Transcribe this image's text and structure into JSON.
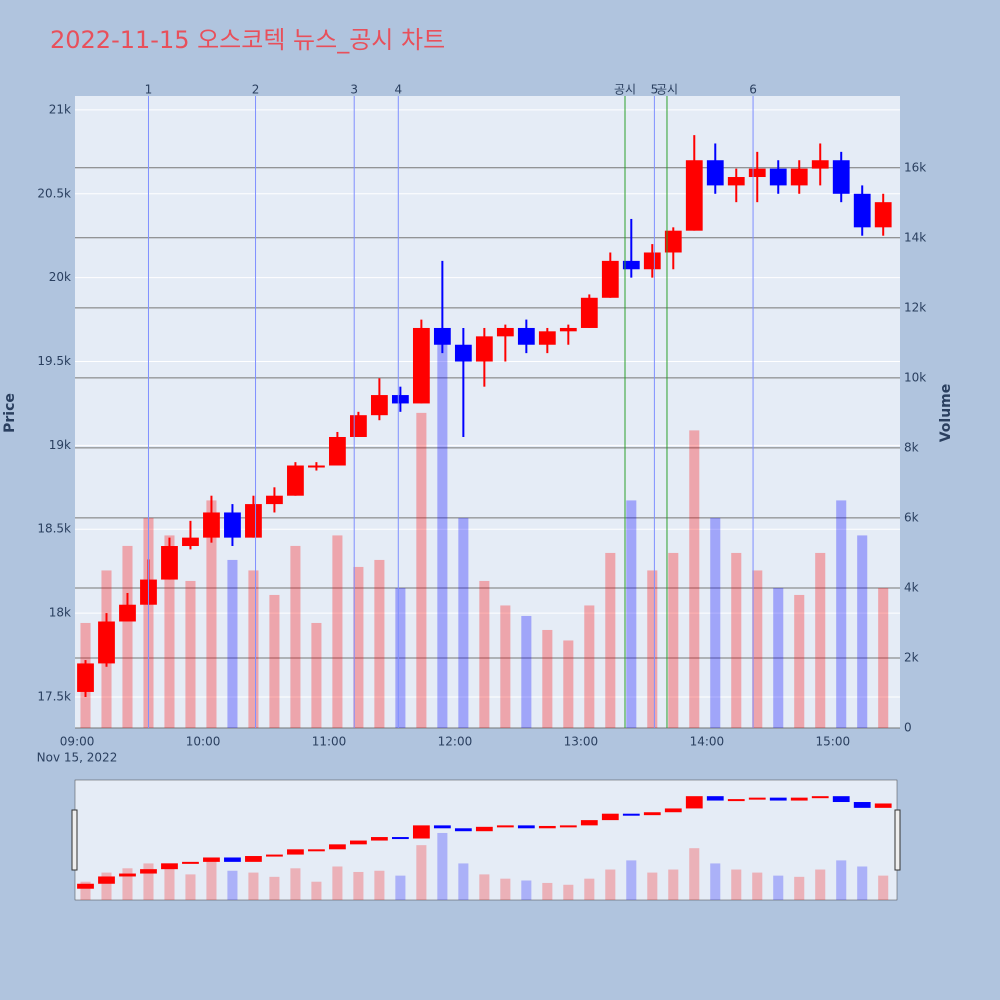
{
  "chart_data": {
    "type": "candlestick",
    "title": "2022-11-15 오스코텍 뉴스_공시 차트",
    "y_label": "Price",
    "y2_label": "Volume",
    "x": [
      "09:00",
      "09:10",
      "09:20",
      "09:30",
      "09:40",
      "09:50",
      "10:00",
      "10:10",
      "10:20",
      "10:30",
      "10:40",
      "10:50",
      "11:00",
      "11:10",
      "11:20",
      "11:30",
      "11:40",
      "11:50",
      "12:00",
      "12:10",
      "12:20",
      "12:30",
      "12:40",
      "12:50",
      "13:00",
      "13:10",
      "13:20",
      "13:30",
      "13:40",
      "13:50",
      "14:00",
      "14:10",
      "14:20",
      "14:30",
      "14:40",
      "14:50",
      "15:00",
      "15:10",
      "15:20"
    ],
    "open": [
      17530,
      17700,
      17950,
      18050,
      18200,
      18400,
      18450,
      18600,
      18450,
      18650,
      18700,
      18880,
      18880,
      19050,
      19180,
      19300,
      19250,
      19700,
      19600,
      19500,
      19650,
      19700,
      19600,
      19680,
      19700,
      19880,
      20100,
      20050,
      20150,
      20280,
      20700,
      20550,
      20600,
      20650,
      20550,
      20650,
      20700,
      20500,
      20300
    ],
    "high": [
      17720,
      18000,
      18120,
      18320,
      18450,
      18550,
      18700,
      18650,
      18700,
      18750,
      18900,
      18900,
      19080,
      19200,
      19400,
      19350,
      19750,
      20100,
      19700,
      19700,
      19720,
      19750,
      19700,
      19720,
      19900,
      20150,
      20350,
      20200,
      20300,
      20850,
      20800,
      20650,
      20750,
      20700,
      20700,
      20800,
      20750,
      20550,
      20500
    ],
    "low": [
      17500,
      17680,
      17950,
      18050,
      18200,
      18380,
      18420,
      18400,
      18450,
      18600,
      18700,
      18850,
      18880,
      19050,
      19150,
      19200,
      19250,
      19550,
      19050,
      19350,
      19500,
      19550,
      19550,
      19600,
      19700,
      19880,
      20000,
      20000,
      20050,
      20280,
      20500,
      20450,
      20450,
      20500,
      20500,
      20550,
      20450,
      20250,
      20250
    ],
    "close": [
      17700,
      17950,
      18050,
      18200,
      18400,
      18450,
      18600,
      18450,
      18650,
      18700,
      18880,
      18880,
      19050,
      19180,
      19300,
      19250,
      19700,
      19600,
      19500,
      19650,
      19700,
      19600,
      19680,
      19700,
      19880,
      20100,
      20050,
      20150,
      20280,
      20700,
      20550,
      20600,
      20650,
      20550,
      20650,
      20700,
      20500,
      20300,
      20450
    ],
    "volume": [
      3000,
      4500,
      5200,
      6000,
      5500,
      4200,
      6500,
      4800,
      4500,
      3800,
      5200,
      3000,
      5500,
      4600,
      4800,
      4000,
      9000,
      11000,
      6000,
      4200,
      3500,
      3200,
      2800,
      2500,
      3500,
      5000,
      6500,
      4500,
      5000,
      8500,
      6000,
      5000,
      4500,
      4000,
      3800,
      5000,
      6500,
      5500,
      4000
    ],
    "up_color": "#ff0000",
    "down_color": "#0000ff",
    "xlim": [
      "08:59",
      "15:32"
    ],
    "xticks": [
      "09:00",
      "10:00",
      "11:00",
      "12:00",
      "13:00",
      "14:00",
      "15:00"
    ],
    "x_date_label": "Nov 15, 2022",
    "ylim": [
      17315,
      21083
    ],
    "yticks": [
      {
        "value": 17500,
        "label": "17.5k"
      },
      {
        "value": 18000,
        "label": "18k"
      },
      {
        "value": 18500,
        "label": "18.5k"
      },
      {
        "value": 19000,
        "label": "19k"
      },
      {
        "value": 19500,
        "label": "19.5k"
      },
      {
        "value": 20000,
        "label": "20k"
      },
      {
        "value": 20500,
        "label": "20.5k"
      },
      {
        "value": 21000,
        "label": "21k"
      }
    ],
    "y2lim": [
      0,
      18050
    ],
    "y2ticks": [
      0,
      {
        "value": 2000,
        "label": "2k"
      },
      {
        "value": 4000,
        "label": "4k"
      },
      {
        "value": 6000,
        "label": "6k"
      },
      {
        "value": 8000,
        "label": "8k"
      },
      {
        "value": 10000,
        "label": "10k"
      },
      {
        "value": 12000,
        "label": "12k"
      },
      {
        "value": 14000,
        "label": "14k"
      },
      {
        "value": 16000,
        "label": "16k"
      }
    ],
    "events": [
      {
        "x": "09:34",
        "label": "1",
        "color": "#7f8fff"
      },
      {
        "x": "10:25",
        "label": "2",
        "color": "#7f8fff"
      },
      {
        "x": "11:12",
        "label": "3",
        "color": "#7f8fff"
      },
      {
        "x": "11:33",
        "label": "4",
        "color": "#7f8fff"
      },
      {
        "x": "13:21",
        "label": "공시",
        "color": "#2ca02c"
      },
      {
        "x": "13:35",
        "label": "5",
        "color": "#7f8fff"
      },
      {
        "x": "13:41",
        "label": "공시",
        "color": "#2ca02c"
      },
      {
        "x": "14:22",
        "label": "6",
        "color": "#7f8fff"
      }
    ],
    "range_slider": true
  }
}
